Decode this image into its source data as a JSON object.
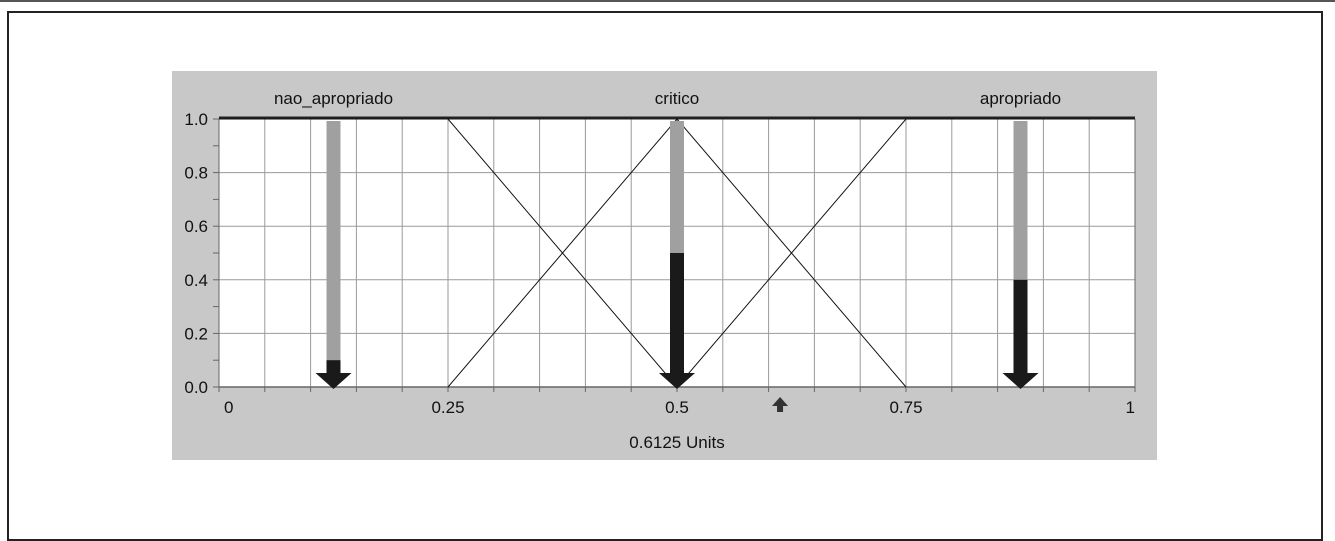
{
  "chart_data": {
    "type": "line",
    "mf_labels": [
      {
        "name": "nao_apropriado",
        "center": 0.125
      },
      {
        "name": "critico",
        "center": 0.5
      },
      {
        "name": "apropriado",
        "center": 0.875
      }
    ],
    "membership_functions": [
      {
        "name": "nao_apropriado",
        "points": [
          [
            0,
            1
          ],
          [
            0.25,
            1
          ],
          [
            0.5,
            0
          ]
        ]
      },
      {
        "name": "critico",
        "points": [
          [
            0.25,
            0
          ],
          [
            0.5,
            1
          ],
          [
            0.75,
            0
          ]
        ]
      },
      {
        "name": "apropriado",
        "points": [
          [
            0.5,
            0
          ],
          [
            0.75,
            1
          ],
          [
            1,
            1
          ]
        ]
      }
    ],
    "bars": [
      {
        "name": "nao_apropriado",
        "x": 0.125,
        "value": 0.1
      },
      {
        "name": "critico",
        "x": 0.5,
        "value": 0.5
      },
      {
        "name": "apropriado",
        "x": 0.875,
        "value": 0.4
      }
    ],
    "y_ticks": [
      "0.0",
      "0.2",
      "0.4",
      "0.6",
      "0.8",
      "1.0"
    ],
    "x_ticks": [
      "0",
      "0.25",
      "0.5",
      "0.75",
      "1"
    ],
    "xlim": [
      0,
      1
    ],
    "ylim": [
      0,
      1
    ],
    "grid": true,
    "marker_x": 0.6125,
    "xlabel": "0.6125 Units",
    "colors": {
      "panel": "#c8c8c8",
      "bar_full": "#a0a0a0",
      "bar_value": "#1a1a1a",
      "grid": "#9a9a9a"
    }
  }
}
